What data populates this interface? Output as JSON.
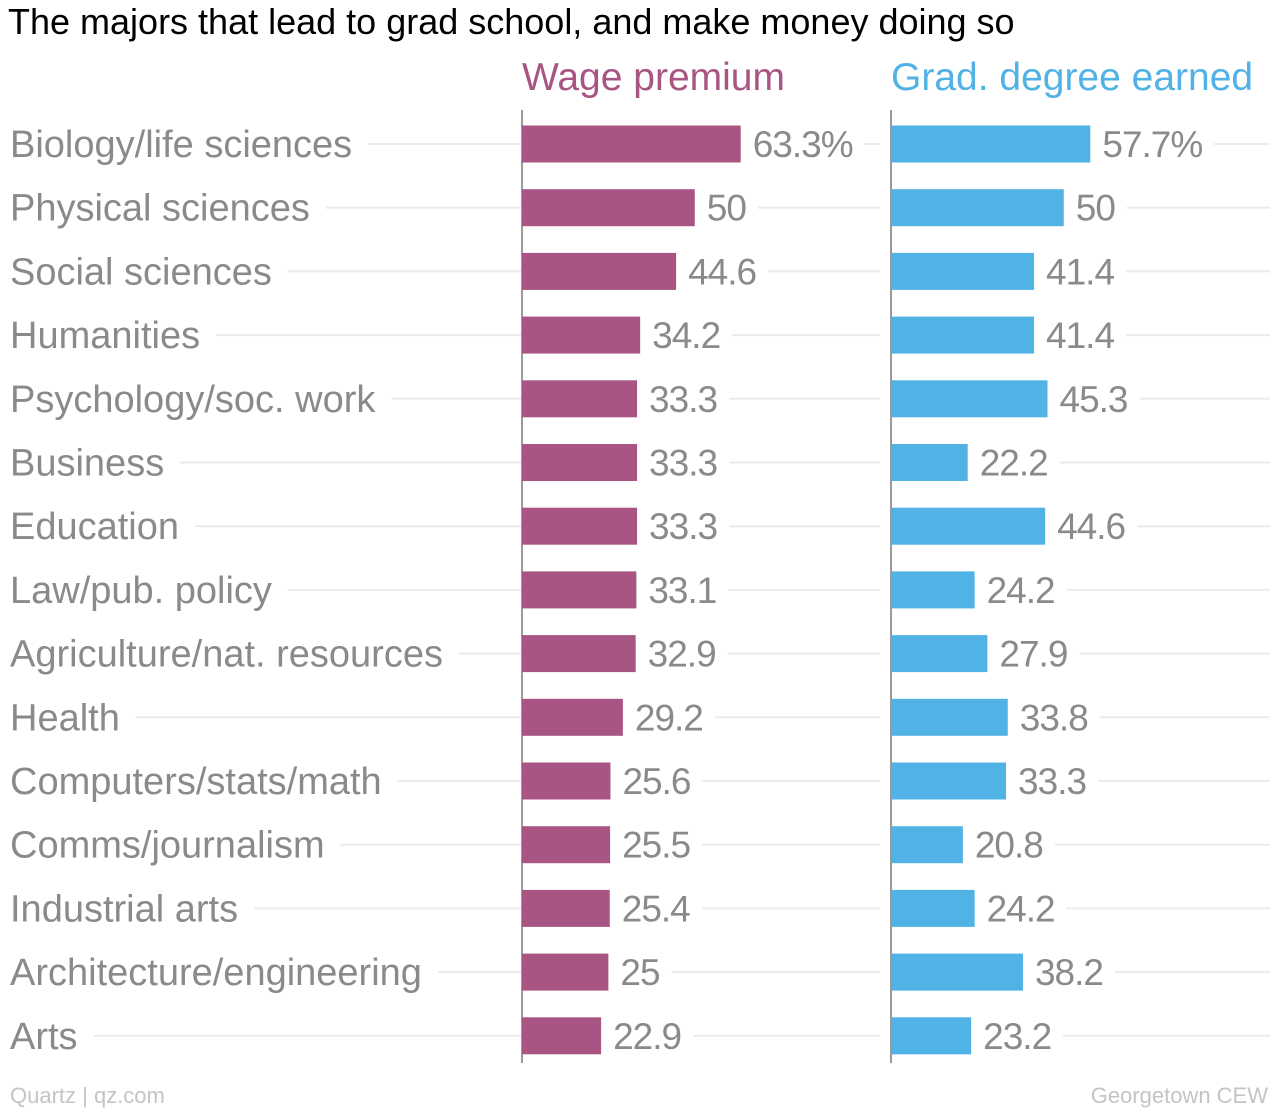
{
  "chart_data": {
    "type": "bar",
    "orientation": "horizontal",
    "title": "The majors that lead to grad school, and make money doing so",
    "categories": [
      "Biology/life sciences",
      "Physical sciences",
      "Social sciences",
      "Humanities",
      "Psychology/soc. work",
      "Business",
      "Education",
      "Law/pub. policy",
      "Agriculture/nat. resources",
      "Health",
      "Computers/stats/math",
      "Comms/journalism",
      "Industrial arts",
      "Architecture/engineering",
      "Arts"
    ],
    "series": [
      {
        "name": "Wage premium",
        "color": "#a85583",
        "values": [
          63.3,
          50,
          44.6,
          34.2,
          33.3,
          33.3,
          33.3,
          33.1,
          32.9,
          29.2,
          25.6,
          25.5,
          25.4,
          25,
          22.9
        ],
        "labels": [
          "63.3%",
          "50",
          "44.6",
          "34.2",
          "33.3",
          "33.3",
          "33.3",
          "33.1",
          "32.9",
          "29.2",
          "25.6",
          "25.5",
          "25.4",
          "25",
          "22.9"
        ]
      },
      {
        "name": "Grad. degree earned",
        "color": "#51b2e5",
        "values": [
          57.7,
          50,
          41.4,
          41.4,
          45.3,
          22.2,
          44.6,
          24.2,
          27.9,
          33.8,
          33.3,
          20.8,
          24.2,
          38.2,
          23.2
        ],
        "labels": [
          "57.7%",
          "50",
          "41.4",
          "41.4",
          "45.3",
          "22.2",
          "44.6",
          "24.2",
          "27.9",
          "33.8",
          "33.3",
          "20.8",
          "24.2",
          "38.2",
          "23.2"
        ]
      }
    ],
    "xlim": [
      0,
      100
    ],
    "grid": true,
    "legend": "top, above each panel"
  },
  "footer": {
    "left": "Quartz | qz.com",
    "right": "Georgetown CEW"
  }
}
